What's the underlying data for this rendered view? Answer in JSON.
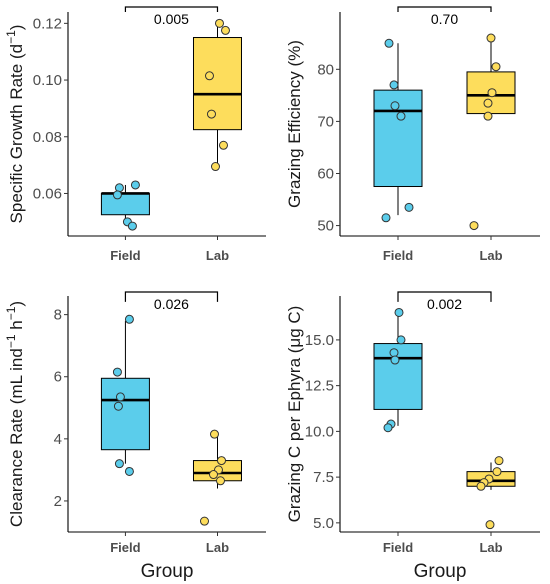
{
  "colors": {
    "field": "#5BCDEB",
    "lab": "#FDDD5C"
  },
  "chart_data": [
    {
      "type": "box",
      "ylabel": "Specific Growth Rate (d",
      "ylabel_sup": "−1",
      "ylabel_tail": ")",
      "xlabel": "",
      "categories": [
        "Field",
        "Lab"
      ],
      "ylim": [
        0.045,
        0.124
      ],
      "yticks": [
        0.06,
        0.08,
        0.1,
        0.12
      ],
      "ytick_labels": [
        "0.06",
        "0.08",
        "0.10",
        "0.12"
      ],
      "p_value": "0.005",
      "boxes": [
        {
          "group": "Field",
          "min": 0.05,
          "q1": 0.0525,
          "median": 0.06,
          "q3": 0.06,
          "max": 0.063,
          "points": [
            0.063,
            0.062,
            0.0595,
            0.05,
            0.0485
          ]
        },
        {
          "group": "Lab",
          "min": 0.07,
          "q1": 0.0825,
          "median": 0.095,
          "q3": 0.115,
          "max": 0.12,
          "points": [
            0.12,
            0.1175,
            0.1015,
            0.088,
            0.077,
            0.0695
          ]
        }
      ]
    },
    {
      "type": "box",
      "ylabel": "Grazing Efficiency (%)",
      "xlabel": "",
      "categories": [
        "Field",
        "Lab"
      ],
      "ylim": [
        48,
        91
      ],
      "yticks": [
        50,
        60,
        70,
        80
      ],
      "ytick_labels": [
        "50",
        "60",
        "70",
        "80"
      ],
      "p_value": "0.70",
      "boxes": [
        {
          "group": "Field",
          "min": 52,
          "q1": 57.5,
          "median": 72,
          "q3": 76,
          "max": 85,
          "points": [
            85,
            77,
            73,
            71,
            53.5,
            51.5
          ]
        },
        {
          "group": "Lab",
          "min": 71,
          "q1": 71.5,
          "median": 75,
          "q3": 79.5,
          "max": 86,
          "points": [
            86,
            80.5,
            75.5,
            73.5,
            71,
            50
          ]
        }
      ]
    },
    {
      "type": "box",
      "ylabel": "Clearance Rate (mL ind",
      "ylabel_sup": "−1",
      "ylabel_mid": " h",
      "ylabel_sup2": "−1",
      "ylabel_tail": ")",
      "xlabel": "Group",
      "categories": [
        "Field",
        "Lab"
      ],
      "ylim": [
        1.0,
        8.6
      ],
      "yticks": [
        2,
        4,
        6,
        8
      ],
      "ytick_labels": [
        "2",
        "4",
        "6",
        "8"
      ],
      "p_value": "0.026",
      "boxes": [
        {
          "group": "Field",
          "min": 3.2,
          "q1": 3.65,
          "median": 5.25,
          "q3": 5.95,
          "max": 7.8,
          "points": [
            7.85,
            6.15,
            5.35,
            5.05,
            3.2,
            2.95
          ]
        },
        {
          "group": "Lab",
          "min": 2.4,
          "q1": 2.65,
          "median": 2.9,
          "q3": 3.3,
          "max": 4.2,
          "points": [
            4.15,
            3.3,
            3.0,
            2.85,
            2.65,
            1.35
          ]
        }
      ]
    },
    {
      "type": "box",
      "ylabel": "Grazing C per Ephyra (μg C)",
      "xlabel": "Group",
      "categories": [
        "Field",
        "Lab"
      ],
      "ylim": [
        4.5,
        17.4
      ],
      "yticks": [
        5.0,
        7.5,
        10.0,
        12.5,
        15.0
      ],
      "ytick_labels": [
        "5.0",
        "7.5",
        "10.0",
        "12.5",
        "15.0"
      ],
      "p_value": "0.002",
      "boxes": [
        {
          "group": "Field",
          "min": 10.3,
          "q1": 11.2,
          "median": 14.0,
          "q3": 14.8,
          "max": 16.5,
          "points": [
            16.5,
            15.0,
            14.3,
            13.9,
            10.4,
            10.2
          ]
        },
        {
          "group": "Lab",
          "min": 6.8,
          "q1": 7.0,
          "median": 7.3,
          "q3": 7.8,
          "max": 8.3,
          "points": [
            8.4,
            7.8,
            7.4,
            7.2,
            7.0,
            4.9
          ]
        }
      ]
    }
  ]
}
